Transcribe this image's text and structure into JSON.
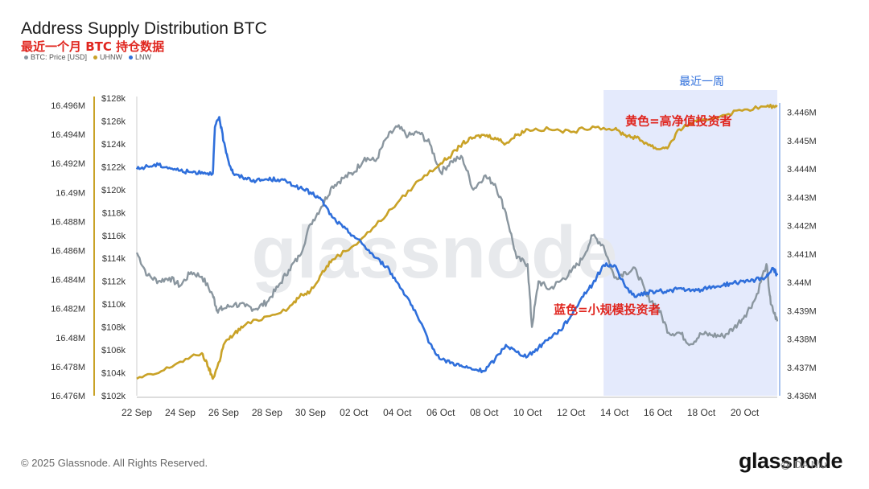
{
  "title": "Address Supply Distribution BTC",
  "subtitle": "最近一个月 BTC 持仓数据",
  "footer": "© 2025 Glassnode. All Rights Reserved.",
  "brand": "glassnode",
  "watermark_big": "glassnode",
  "watermark_small": "@ DA Niu",
  "colors": {
    "price": "#8a969f",
    "uhnw": "#c9a227",
    "lnw": "#2f6fdb",
    "highlight": "#dfe6fb",
    "annotation": "#e0261f",
    "axis_label": "#333333"
  },
  "chart_data": {
    "type": "line",
    "x_ticks": [
      "22 Sep",
      "24 Sep",
      "26 Sep",
      "28 Sep",
      "30 Sep",
      "02 Oct",
      "04 Oct",
      "06 Oct",
      "08 Oct",
      "10 Oct",
      "12 Oct",
      "14 Oct",
      "16 Oct",
      "18 Oct",
      "20 Oct"
    ],
    "left_axis_ticks": [
      "16.496M",
      "16.494M",
      "16.492M",
      "16.49M",
      "16.488M",
      "16.486M",
      "16.484M",
      "16.482M",
      "16.48M",
      "16.478M",
      "16.476M"
    ],
    "price_axis_ticks": [
      "$128k",
      "$126k",
      "$124k",
      "$122k",
      "$120k",
      "$118k",
      "$116k",
      "$114k",
      "$112k",
      "$110k",
      "$108k",
      "$106k",
      "$104k",
      "$102k"
    ],
    "right_axis_ticks": [
      "3.446M",
      "3.445M",
      "3.444M",
      "3.443M",
      "3.442M",
      "3.441M",
      "3.44M",
      "3.439M",
      "3.438M",
      "3.437M",
      "3.436M"
    ],
    "ranges": {
      "x_days": [
        0,
        29.5
      ],
      "left": [
        16.476,
        16.4965
      ],
      "price": [
        102,
        128
      ],
      "right": [
        3.436,
        3.4465
      ]
    },
    "series": [
      {
        "name": "BTC: Price [USD]",
        "axis": "price",
        "color_key": "price",
        "x": [
          0,
          0.5,
          1,
          1.5,
          2,
          2.5,
          3,
          3.5,
          3.7,
          4,
          4.5,
          5,
          5.5,
          6,
          6.5,
          7,
          7.5,
          8,
          8.5,
          9,
          9.5,
          10,
          10.5,
          11,
          11.5,
          12,
          12.5,
          13,
          13.5,
          14,
          14.5,
          15,
          15.5,
          16,
          16.5,
          17,
          17.5,
          18,
          18.2,
          18.5,
          19,
          19.5,
          20,
          20.5,
          21,
          21.5,
          22,
          22.5,
          23,
          23.5,
          24,
          24.5,
          25,
          25.5,
          26,
          26.5,
          27,
          27.5,
          28,
          28.5,
          29,
          29.2,
          29.5
        ],
        "y": [
          114.5,
          112.5,
          112,
          112.3,
          111.6,
          112.8,
          112.4,
          110.8,
          109.5,
          109.6,
          110,
          109.8,
          109.6,
          110.2,
          111.5,
          113,
          114.2,
          117,
          118.5,
          120.3,
          121,
          121.5,
          122.8,
          122.5,
          124.5,
          125.5,
          124.7,
          125,
          124,
          121.5,
          122.5,
          122.8,
          120,
          121.2,
          120.5,
          118,
          114,
          113.5,
          108,
          112,
          111.3,
          112,
          112.8,
          113.9,
          116,
          115.1,
          112.3,
          112.8,
          113,
          110.7,
          109.7,
          107.5,
          107.5,
          106.5,
          107.4,
          107.3,
          107.2,
          107.9,
          109,
          110.5,
          113.5,
          110,
          108.5
        ]
      },
      {
        "name": "UHNW",
        "axis": "right",
        "color_key": "uhnw",
        "x": [
          0,
          1,
          2,
          3,
          3.3,
          3.5,
          3.8,
          4,
          4.5,
          5,
          6,
          7,
          7.5,
          8,
          8.5,
          9,
          10,
          11,
          12,
          13,
          14,
          14.5,
          15,
          15.5,
          16,
          16.5,
          17,
          17.5,
          18,
          19,
          20,
          21,
          22,
          22.5,
          23,
          23.5,
          24,
          24.5,
          25,
          25.5,
          26,
          27,
          28,
          29,
          29.5
        ],
        "y": [
          3.4366,
          3.4368,
          3.4372,
          3.4375,
          3.437,
          3.4366,
          3.4372,
          3.4378,
          3.4382,
          3.4385,
          3.4388,
          3.4391,
          3.4395,
          3.4397,
          3.4403,
          3.4408,
          3.4413,
          3.442,
          3.4428,
          3.4436,
          3.4442,
          3.4445,
          3.4449,
          3.4451,
          3.4452,
          3.4451,
          3.4449,
          3.4452,
          3.4454,
          3.4454,
          3.4453,
          3.4455,
          3.4454,
          3.4452,
          3.4451,
          3.4449,
          3.4447,
          3.4448,
          3.4454,
          3.4456,
          3.4457,
          3.4459,
          3.4461,
          3.4462,
          3.4462
        ]
      },
      {
        "name": "LNW",
        "axis": "left",
        "color_key": "lnw",
        "x": [
          0,
          0.5,
          1,
          1.5,
          2,
          2.5,
          3,
          3.5,
          3.6,
          3.8,
          4,
          4.3,
          4.5,
          5,
          5.5,
          6,
          6.5,
          7,
          7.5,
          8,
          8.5,
          9,
          9.5,
          10,
          10.5,
          11,
          11.5,
          12,
          12.5,
          13,
          13.5,
          14,
          14.5,
          15,
          15.5,
          16,
          16.5,
          17,
          17.5,
          18,
          18.5,
          19,
          19.5,
          20,
          20.5,
          21,
          21.5,
          22,
          22.5,
          23,
          23.5,
          24,
          24.5,
          25,
          25.5,
          26,
          26.5,
          27,
          27.5,
          28,
          28.5,
          29,
          29.3,
          29.5
        ],
        "y": [
          16.4916,
          16.4918,
          16.4919,
          16.4917,
          16.4915,
          16.4914,
          16.4914,
          16.4913,
          16.4945,
          16.4952,
          16.4935,
          16.4918,
          16.4912,
          16.491,
          16.4908,
          16.4909,
          16.4909,
          16.4907,
          16.4903,
          16.49,
          16.4895,
          16.4883,
          16.4876,
          16.487,
          16.4863,
          16.4855,
          16.4849,
          16.4838,
          16.4827,
          16.4812,
          16.4796,
          16.4785,
          16.4783,
          16.478,
          16.4778,
          16.4777,
          16.4785,
          16.4795,
          16.479,
          16.4787,
          16.4793,
          16.48,
          16.4805,
          16.4815,
          16.4828,
          16.4837,
          16.485,
          16.485,
          16.4835,
          16.4828,
          16.4831,
          16.4832,
          16.4832,
          16.4834,
          16.4832,
          16.4833,
          16.4835,
          16.4836,
          16.4838,
          16.4838,
          16.484,
          16.4842,
          16.4848,
          16.4843
        ]
      }
    ],
    "highlight": {
      "x_range": [
        21.5,
        29.5
      ],
      "label": "最近一周"
    },
    "annotations": [
      {
        "text": "黄色=高净值投资者",
        "x": 22.5,
        "y_axis": "right",
        "y": 3.44555
      },
      {
        "text": "蓝色=小规模投资者",
        "x": 19.2,
        "y_axis": "right",
        "y": 3.4389
      }
    ],
    "grid": false,
    "legend_placement": "top-left"
  }
}
